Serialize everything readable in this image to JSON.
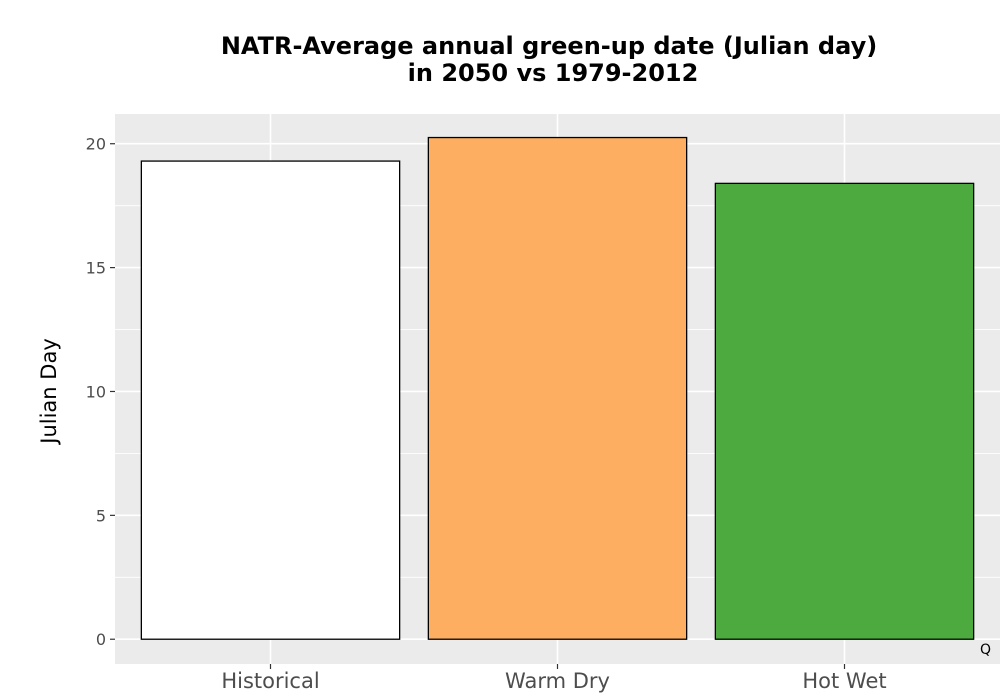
{
  "chart_data": {
    "type": "bar",
    "title_line1": "NATR-Average annual green-up date (Julian day)",
    "title_line2": "in 2050 vs 1979-2012",
    "xlabel": "",
    "ylabel": "Julian Day",
    "categories": [
      "Historical",
      "Warm Dry",
      "Hot Wet"
    ],
    "values": [
      19.3,
      20.25,
      18.4
    ],
    "colors": [
      "#ffffff",
      "#fdae61",
      "#4daa3f"
    ],
    "bar_outline": "#000000",
    "panel_background": "#ebebeb",
    "grid_color": "#ffffff",
    "ylim": [
      -1,
      21.2
    ],
    "yticks": [
      0,
      5,
      10,
      15,
      20
    ],
    "ytick_labels": [
      "0",
      "5",
      "10",
      "15",
      "20"
    ],
    "grid": true,
    "legend": "none",
    "corner_mark": "Q"
  }
}
